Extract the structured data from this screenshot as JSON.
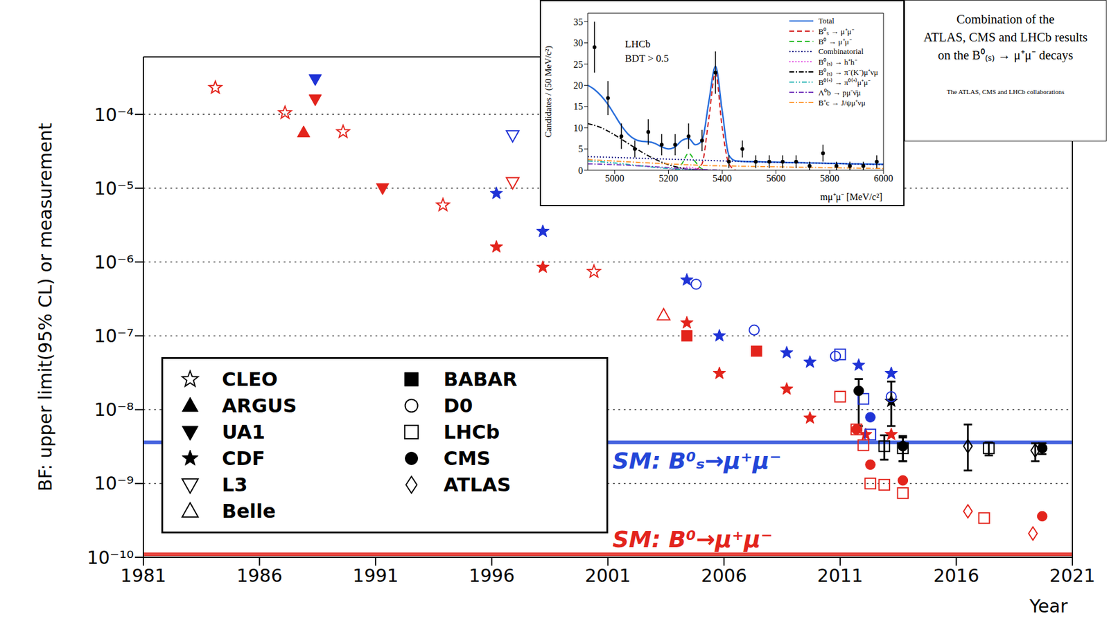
{
  "chart_data": [
    {
      "type": "scatter",
      "y_label": "BF: upper limit(95% CL) or measurement",
      "x_label": "Year",
      "xlim": [
        1981,
        2021
      ],
      "xticks": [
        1981,
        1986,
        1991,
        1996,
        2001,
        2006,
        2011,
        2016,
        2021
      ],
      "ylim": [
        1e-10,
        0.0006
      ],
      "yticks": [
        {
          "value": 1e-10,
          "label": "10⁻¹⁰"
        },
        {
          "value": 1e-09,
          "label": "10⁻⁹"
        },
        {
          "value": 1e-08,
          "label": "10⁻⁸"
        },
        {
          "value": 1e-07,
          "label": "10⁻⁷"
        },
        {
          "value": 1e-06,
          "label": "10⁻⁶"
        },
        {
          "value": 1e-05,
          "label": "10⁻⁵"
        },
        {
          "value": 0.0001,
          "label": "10⁻⁴"
        }
      ],
      "log": "y",
      "grid": true,
      "legend": "lower left",
      "reference_lines": [
        {
          "name": "SM: B⁰ₛ→μ⁺μ⁻",
          "value": 3.6e-09,
          "color": "#2346d8"
        },
        {
          "name": "SM: B⁰→μ⁺μ⁻",
          "value": 1.1e-10,
          "color": "#e3241c"
        }
      ],
      "series": [
        {
          "name": "CLEO",
          "marker": "star_open",
          "x": [
            1984.1,
            1987.1,
            1989.6,
            1993.9,
            2000.4
          ],
          "values": [
            0.00023,
            0.000105,
            5.8e-05,
            5.9e-06,
            7.4e-07
          ],
          "colors": [
            "#e3241c",
            "#e3241c",
            "#e3241c",
            "#e3241c",
            "#e3241c"
          ],
          "lower": [
            null,
            null,
            null,
            null,
            null
          ],
          "upper": [
            null,
            null,
            null,
            null,
            null
          ]
        },
        {
          "name": "ARGUS",
          "marker": "triangle_up_filled",
          "x": [
            1987.9
          ],
          "values": [
            5.7e-05
          ],
          "colors": [
            "#e3241c"
          ],
          "lower": [
            null
          ],
          "upper": [
            null
          ]
        },
        {
          "name": "UA1",
          "marker": "triangle_down_filled",
          "x": [
            1988.4,
            1988.4,
            1991.3
          ],
          "values": [
            0.0003,
            0.00016,
            1e-05
          ],
          "colors": [
            "#1f33d6",
            "#e3241c",
            "#e3241c"
          ],
          "lower": [
            null,
            null,
            null
          ],
          "upper": [
            null,
            null,
            null
          ]
        },
        {
          "name": "CDF",
          "marker": "star_filled",
          "x": [
            1996.2,
            1996.2,
            1998.2,
            1998.2,
            2004.4,
            2004.4,
            2005.8,
            2005.8,
            2008.7,
            2008.7,
            2009.7,
            2009.7,
            2011.8,
            2012.1,
            2013.2,
            2013.2,
            2013.2
          ],
          "values": [
            8.5e-06,
            1.6e-06,
            2.6e-06,
            8.5e-07,
            5.7e-07,
            1.5e-07,
            1e-07,
            3.1e-08,
            5.9e-08,
            1.9e-08,
            4.4e-08,
            7.7e-09,
            4e-08,
            4.6e-09,
            3.1e-08,
            4.6e-09,
            1.3e-08
          ],
          "colors": [
            "#1f33d6",
            "#e3241c",
            "#1f33d6",
            "#e3241c",
            "#1f33d6",
            "#e3241c",
            "#1f33d6",
            "#e3241c",
            "#1f33d6",
            "#e3241c",
            "#1f33d6",
            "#e3241c",
            "#1f33d6",
            "#e3241c",
            "#1f33d6",
            "#e3241c",
            "#000000"
          ],
          "lower": [
            null,
            null,
            null,
            null,
            null,
            null,
            null,
            null,
            null,
            null,
            null,
            null,
            null,
            null,
            null,
            null,
            6e-09
          ],
          "upper": [
            null,
            null,
            null,
            null,
            null,
            null,
            null,
            null,
            null,
            null,
            null,
            null,
            null,
            null,
            null,
            null,
            2.4e-08
          ]
        },
        {
          "name": "L3",
          "marker": "triangle_down_open",
          "x": [
            1996.9,
            1996.9
          ],
          "values": [
            5.2e-05,
            1.2e-05
          ],
          "colors": [
            "#1f33d6",
            "#e3241c"
          ],
          "lower": [
            null,
            null
          ],
          "upper": [
            null,
            null
          ]
        },
        {
          "name": "Belle",
          "marker": "triangle_up_open",
          "x": [
            2003.4
          ],
          "values": [
            1.9e-07
          ],
          "colors": [
            "#e3241c"
          ],
          "lower": [
            null
          ],
          "upper": [
            null
          ]
        },
        {
          "name": "BABAR",
          "marker": "square_filled",
          "x": [
            2004.4,
            2007.4
          ],
          "values": [
            1e-07,
            6.2e-08
          ],
          "colors": [
            "#e3241c",
            "#e3241c"
          ],
          "lower": [
            null,
            null
          ],
          "upper": [
            null,
            null
          ]
        },
        {
          "name": "D0",
          "marker": "circle_open",
          "x": [
            2004.8,
            2007.3,
            2010.8,
            2013.2
          ],
          "values": [
            5e-07,
            1.2e-07,
            5.3e-08,
            1.5e-08
          ],
          "colors": [
            "#1f33d6",
            "#1f33d6",
            "#1f33d6",
            "#1f33d6"
          ],
          "lower": [
            null,
            null,
            null,
            null
          ],
          "upper": [
            null,
            null,
            null,
            null
          ]
        },
        {
          "name": "LHCb",
          "marker": "square_open",
          "x": [
            2011.0,
            2011.0,
            2012.0,
            2011.7,
            2012.3,
            2012.0,
            2012.3,
            2012.9,
            2012.9,
            2013.7,
            2013.7,
            2017.4,
            2017.2
          ],
          "values": [
            5.6e-08,
            1.5e-08,
            1.4e-08,
            5.4e-09,
            4.6e-09,
            3.3e-09,
            1e-09,
            3.2e-09,
            9.6e-10,
            3e-09,
            7.4e-10,
            3e-09,
            3.4e-10
          ],
          "colors": [
            "#1f33d6",
            "#e3241c",
            "#1f33d6",
            "#e3241c",
            "#1f33d6",
            "#e3241c",
            "#e3241c",
            "#000000",
            "#e3241c",
            "#000000",
            "#e3241c",
            "#000000",
            "#e3241c"
          ],
          "lower": [
            null,
            null,
            null,
            null,
            null,
            null,
            null,
            2.1e-09,
            null,
            2e-09,
            null,
            2.4e-09,
            null
          ],
          "upper": [
            null,
            null,
            null,
            null,
            null,
            null,
            null,
            4.5e-09,
            null,
            4.2e-09,
            null,
            3.6e-09,
            null
          ]
        },
        {
          "name": "CMS",
          "marker": "circle_filled",
          "x": [
            2011.8,
            2011.7,
            2012.3,
            2012.3,
            2013.7,
            2013.7,
            2019.7,
            2019.7
          ],
          "values": [
            1.8e-08,
            5.4e-09,
            7.9e-09,
            1.8e-09,
            3.2e-09,
            1.1e-09,
            3e-09,
            3.6e-10
          ],
          "colors": [
            "#000000",
            "#e3241c",
            "#1f33d6",
            "#e3241c",
            "#000000",
            "#e3241c",
            "#000000",
            "#e3241c"
          ],
          "lower": [
            6e-09,
            null,
            null,
            null,
            2e-09,
            null,
            2.5e-09,
            null
          ],
          "upper": [
            2.6e-08,
            null,
            null,
            null,
            4.4e-09,
            null,
            3.5e-09,
            null
          ]
        },
        {
          "name": "ATLAS",
          "marker": "diamond_open",
          "x": [
            2016.5,
            2016.5,
            2019.4,
            2019.3
          ],
          "values": [
            3.2e-09,
            4.2e-10,
            2.8e-09,
            2.1e-10
          ],
          "colors": [
            "#000000",
            "#e3241c",
            "#000000",
            "#e3241c"
          ],
          "lower": [
            1.5e-09,
            null,
            2e-09,
            null
          ],
          "upper": [
            6.3e-09,
            null,
            3.5e-09,
            null
          ]
        }
      ]
    },
    {
      "type": "line",
      "annotations": [
        "LHCb",
        "BDT > 0.5"
      ],
      "x_label": "mμ⁺μ⁻ [MeV/c²]",
      "y_label": "Candidates / (50 MeV/c²)",
      "xlim": [
        4900,
        6000
      ],
      "xticks": [
        5000,
        5200,
        5400,
        5600,
        5800,
        6000
      ],
      "ylim": [
        0,
        37
      ],
      "yticks": [
        0,
        5,
        10,
        15,
        20,
        25,
        30,
        35
      ],
      "legend": "upper right",
      "data_points": {
        "x": [
          4925,
          4975,
          5025,
          5075,
          5125,
          5175,
          5225,
          5275,
          5325,
          5375,
          5425,
          5475,
          5525,
          5575,
          5625,
          5675,
          5725,
          5775,
          5825,
          5875,
          5925,
          5975
        ],
        "values": [
          29,
          17,
          8,
          5,
          9,
          6,
          6,
          8,
          7,
          23,
          2,
          5,
          2,
          2,
          2,
          2,
          1,
          4,
          1,
          1,
          1,
          2
        ],
        "errors": [
          6,
          4,
          3,
          2,
          3,
          2.5,
          2.5,
          3,
          2.5,
          5,
          1.5,
          2,
          1.5,
          1.5,
          1.5,
          1.5,
          1,
          2,
          1,
          1,
          1,
          1.5
        ]
      },
      "series": [
        {
          "name": "Total",
          "color": "#2a6fdb",
          "line_style": "solid",
          "x": [
            4900,
            4925,
            4950,
            4975,
            5000,
            5025,
            5050,
            5075,
            5100,
            5125,
            5150,
            5175,
            5200,
            5225,
            5250,
            5275,
            5300,
            5325,
            5350,
            5375,
            5400,
            5425,
            5450,
            5475,
            5500,
            5525,
            5550,
            5575,
            5600,
            5625,
            5650,
            5675,
            5700,
            5725,
            5750,
            5775,
            5800,
            5825,
            5850,
            5875,
            5900,
            5925,
            5950,
            5975,
            6000
          ],
          "values": [
            20,
            19,
            17.5,
            15.5,
            13,
            10.5,
            8.5,
            7.3,
            6.8,
            6.7,
            6.3,
            5.5,
            5,
            5.5,
            7,
            7.5,
            6,
            7,
            16,
            24.5,
            14,
            3.5,
            2.2,
            2.1,
            2.0,
            2.0,
            1.95,
            1.9,
            1.9,
            1.85,
            1.8,
            1.8,
            1.75,
            1.7,
            1.7,
            1.65,
            1.6,
            1.6,
            1.55,
            1.5,
            1.5,
            1.45,
            1.45,
            1.4,
            1.4
          ]
        },
        {
          "name": "B⁰ₛ → μ⁺μ⁻",
          "color": "#d42020",
          "line_style": "dashed",
          "x": [
            5300,
            5325,
            5350,
            5375,
            5400,
            5425,
            5450
          ],
          "values": [
            0,
            1.5,
            12,
            23,
            10,
            1.5,
            0
          ]
        },
        {
          "name": "B⁰ → μ⁺μ⁻",
          "color": "#22bb22",
          "line_style": "dashed",
          "x": [
            5225,
            5250,
            5275,
            5300,
            5325,
            5350
          ],
          "values": [
            0,
            1.5,
            4,
            2,
            0.3,
            0
          ]
        },
        {
          "name": "Combinatorial",
          "color": "#1a1a8a",
          "line_style": "dotted",
          "x": [
            4900,
            5200,
            5500,
            5800,
            6000
          ],
          "values": [
            3.2,
            2.6,
            2.0,
            1.6,
            1.3
          ]
        },
        {
          "name": "B⁰₍ₛ₎ → h⁺h⁻",
          "color": "#e040e0",
          "line_style": "dotted",
          "x": [
            5200,
            5250,
            5275,
            5300,
            5350
          ],
          "values": [
            0,
            0.5,
            0.7,
            0.4,
            0
          ]
        },
        {
          "name": "B⁰₍ₛ₎ → π⁻(K⁻)μ⁺νμ",
          "color": "#000000",
          "line_style": "dashdot",
          "x": [
            4900,
            4950,
            5000,
            5050,
            5100,
            5150,
            5200,
            5250,
            5300,
            5350
          ],
          "values": [
            11,
            10,
            8.3,
            6.3,
            4.3,
            2.6,
            1.3,
            0.5,
            0.1,
            0
          ]
        },
        {
          "name": "B⁰⁽⁺⁾ → π⁰⁽⁺⁾μ⁺μ⁻",
          "color": "#19b3b3",
          "line_style": "dashdotdot",
          "x": [
            4900,
            5000,
            5100,
            5200,
            5300
          ],
          "values": [
            2.2,
            1.7,
            1.0,
            0.4,
            0
          ]
        },
        {
          "name": "Λ⁰b → pμ⁻ν̄μ",
          "color": "#7a3fbf",
          "line_style": "dashdot",
          "x": [
            4900,
            5000,
            5100,
            5200,
            5300,
            5400
          ],
          "values": [
            1.5,
            1.3,
            1.0,
            0.6,
            0.2,
            0
          ]
        },
        {
          "name": "B⁺c → J/ψμ⁺νμ",
          "color": "#ff9933",
          "line_style": "dashdot",
          "x": [
            4900,
            5100,
            5300,
            5600,
            6000
          ],
          "values": [
            2.5,
            1.8,
            1.2,
            0.8,
            0.4
          ]
        }
      ]
    }
  ],
  "document": {
    "title_lines": [
      "Combination of the",
      "ATLAS, CMS and LHCb results",
      "on the B⁰₍ₛ₎ → μ⁺μ⁻ decays"
    ],
    "authors": "The ATLAS, CMS and LHCb collaborations"
  }
}
